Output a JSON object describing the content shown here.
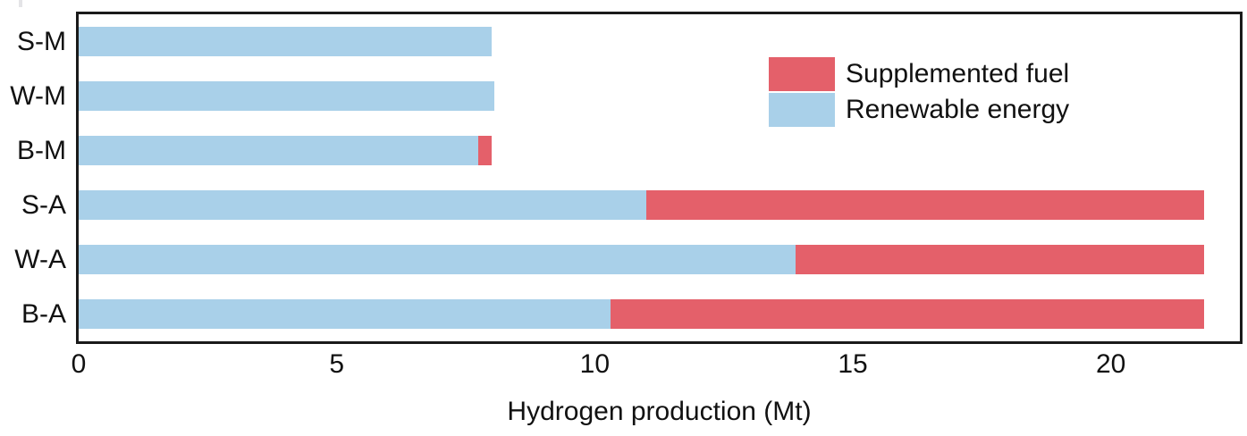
{
  "figure": {
    "background": "#ffffff",
    "border_color": "#1a1a1a"
  },
  "legend": {
    "items": [
      {
        "label": "Supplemented fuel",
        "color": "#e4606a"
      },
      {
        "label": "Renewable energy",
        "color": "#a9d0e9"
      }
    ]
  },
  "chart_data": {
    "type": "bar",
    "orientation": "horizontal",
    "stacked": true,
    "title": "",
    "xlabel": "Hydrogen production (Mt)",
    "ylabel": "",
    "categories": [
      "S-M",
      "W-M",
      "B-M",
      "S-A",
      "W-A",
      "B-A"
    ],
    "series": [
      {
        "name": "Renewable energy",
        "color": "#a9d0e9",
        "values": [
          8.0,
          8.05,
          7.75,
          11.0,
          13.9,
          10.3
        ]
      },
      {
        "name": "Supplemented fuel",
        "color": "#e4606a",
        "values": [
          0,
          0,
          0.25,
          10.8,
          7.9,
          11.5
        ]
      }
    ],
    "totals": [
      8.0,
      8.05,
      8.0,
      21.8,
      21.8,
      21.8
    ],
    "x_ticks": [
      0,
      5,
      10,
      15,
      20
    ],
    "xlim": [
      0,
      22.5
    ],
    "grid": false,
    "legend_position": "upper right inside"
  }
}
